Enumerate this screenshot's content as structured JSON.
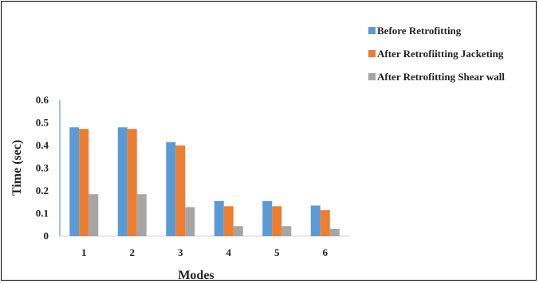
{
  "chart_data": {
    "type": "bar",
    "title": "",
    "xlabel": "Modes",
    "ylabel": "Time (sec)",
    "categories": [
      "1",
      "2",
      "3",
      "4",
      "5",
      "6"
    ],
    "ylim": [
      0,
      0.6
    ],
    "yticks": [
      "0",
      "0.1",
      "0.2",
      "0.3",
      "0.4",
      "0.5",
      "0.6"
    ],
    "legend_position": "top-right",
    "grid": false,
    "series": [
      {
        "name": "Before Retrofitting",
        "color": "#5B9BD5",
        "values": [
          0.48,
          0.48,
          0.415,
          0.155,
          0.155,
          0.135
        ]
      },
      {
        "name": "After Retrofiitting Jacketing",
        "color": "#ED7D31",
        "values": [
          0.473,
          0.473,
          0.4,
          0.132,
          0.132,
          0.115
        ]
      },
      {
        "name": "After Retrofitting Shear wall",
        "color": "#A5A5A5",
        "values": [
          0.185,
          0.185,
          0.128,
          0.044,
          0.044,
          0.032
        ]
      }
    ]
  }
}
